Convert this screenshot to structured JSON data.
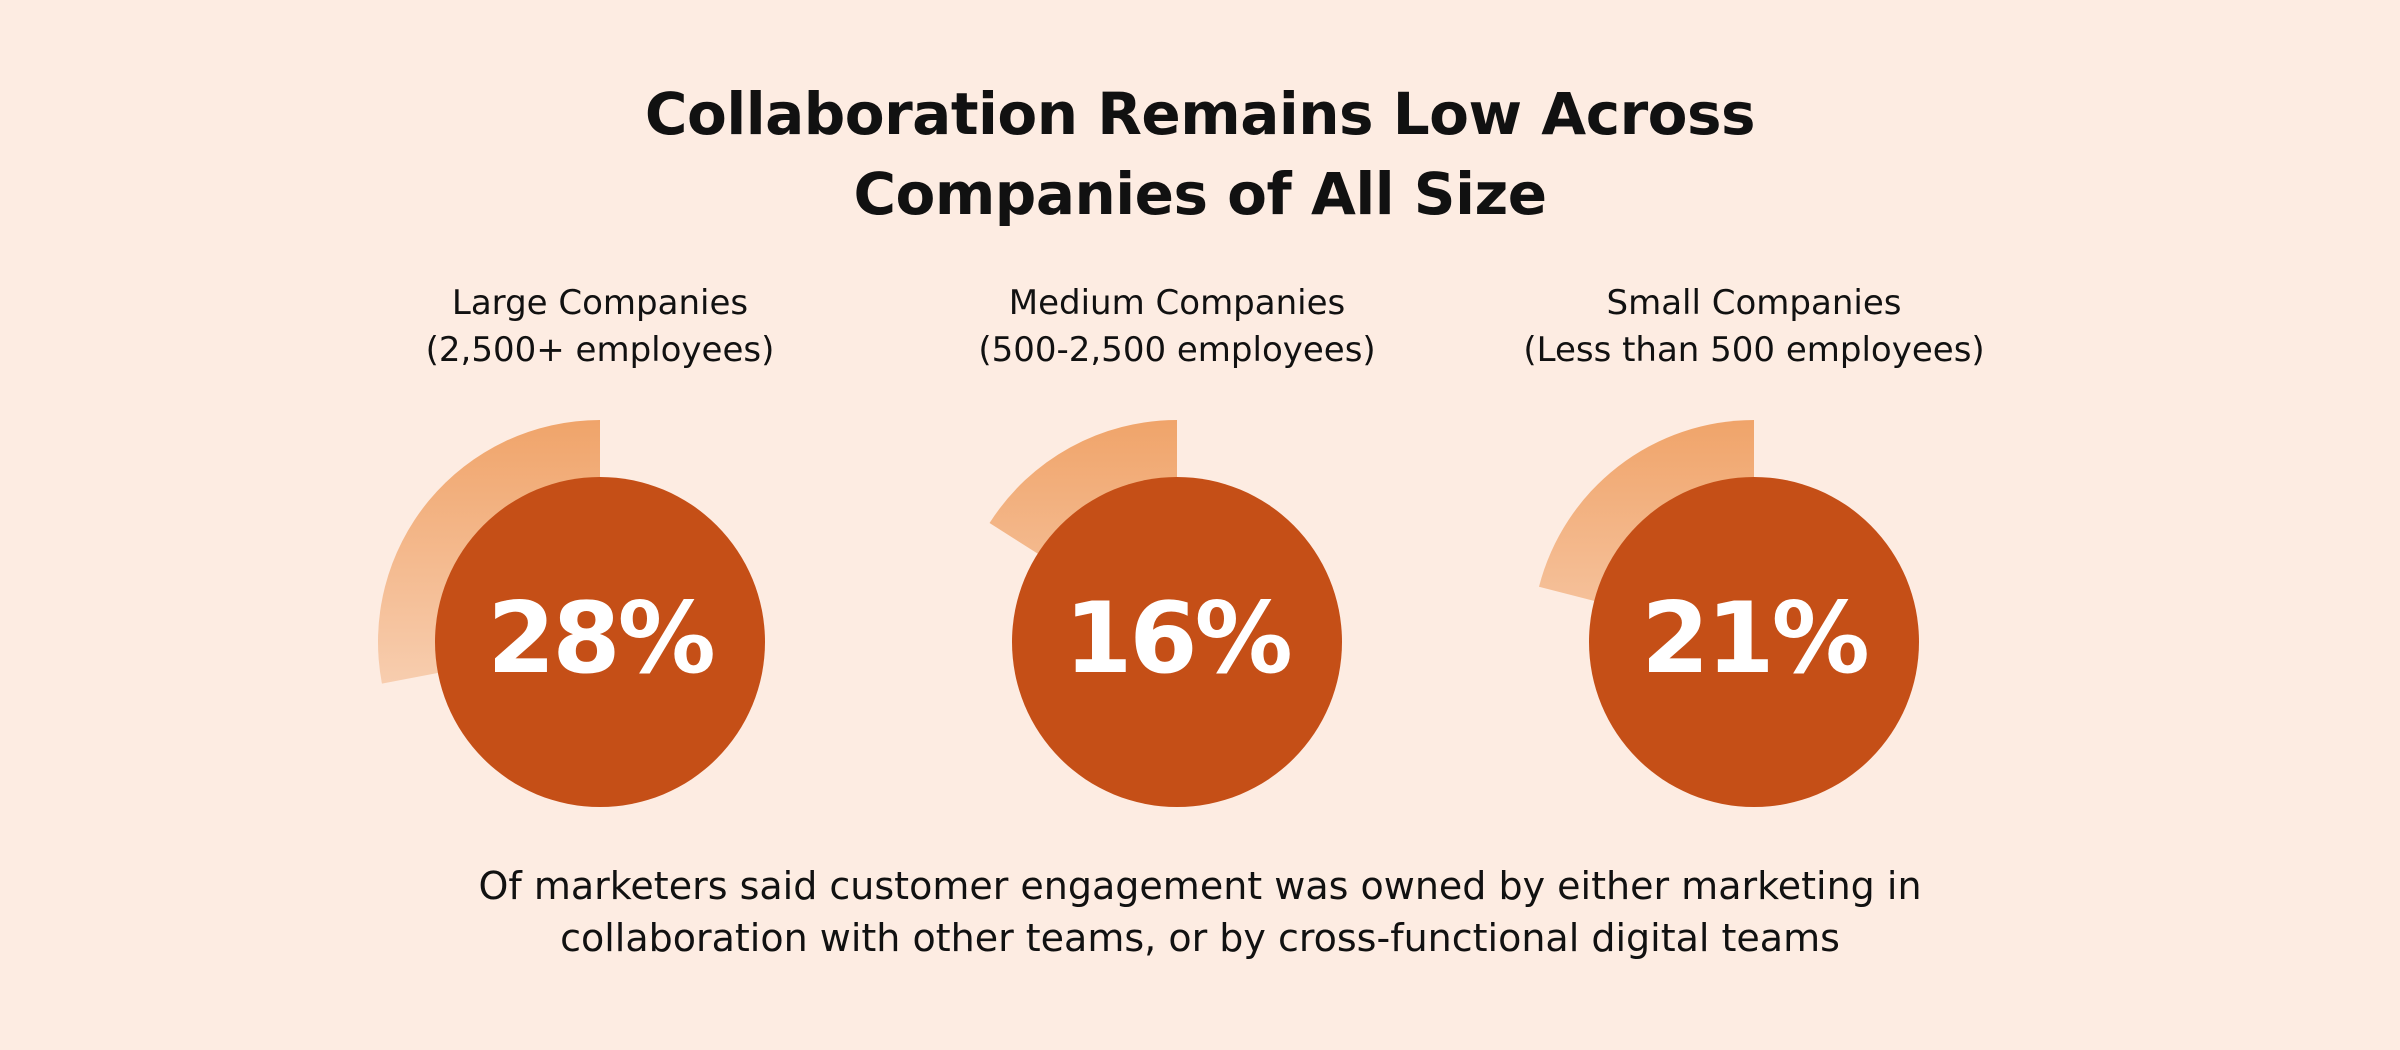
{
  "title": {
    "line1": "Collaboration Remains Low Across",
    "line2": "Companies of All Size"
  },
  "colors": {
    "background": "#fdece2",
    "circle_fill": "#c54f17",
    "wedge_color": "#f0a46a",
    "value_text": "#ffffff",
    "text": "#111111"
  },
  "chart_data": {
    "type": "pie",
    "unit": "%",
    "categories": [
      {
        "line1": "Large Companies",
        "line2": "(2,500+ employees)",
        "value": 28,
        "label": "28%"
      },
      {
        "line1": "Medium Companies",
        "line2": "(500-2,500 employees)",
        "value": 16,
        "label": "16%"
      },
      {
        "line1": "Small Companies",
        "line2": "(Less than 500 employees)",
        "value": 21,
        "label": "21%"
      }
    ]
  },
  "footnote": {
    "line1": "Of marketers said customer engagement was owned by either marketing in",
    "line2": "collaboration with other teams, or by cross-functional digital teams"
  }
}
